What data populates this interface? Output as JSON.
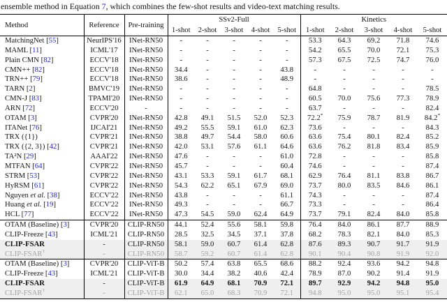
{
  "caption": {
    "before": "ensemble method in Equation ",
    "equation_ref": "7",
    "after": ", which combines the few-shot results and video-text matching results."
  },
  "colors": {
    "link_blue": "#2222cc",
    "muted_gray": "#a3a3a3",
    "shaded_row_bg": "#efefef"
  },
  "table": {
    "col_headers": {
      "method": "Method",
      "reference": "Reference",
      "pretraining": "Pre-training"
    },
    "dataset_groups": [
      {
        "label": "SSv2-Full"
      },
      {
        "label": "Kinetics"
      }
    ],
    "shot_headers": [
      "1-shot",
      "2-shot",
      "3-shot",
      "4-shot",
      "5-shot"
    ],
    "sections": [
      {
        "rows": [
          {
            "name": "MatchingNet",
            "cite": "55",
            "reference": "NeurIPS'16",
            "pretraining": "INet-RN50",
            "ssv2": [
              "-",
              "-",
              "-",
              "-",
              "-"
            ],
            "kinetics": [
              "53.3",
              "64.3",
              "69.2",
              "71.8",
              "74.6"
            ]
          },
          {
            "name": "MAML",
            "cite": "11",
            "reference": "ICML'17",
            "pretraining": "INet-RN50",
            "ssv2": [
              "-",
              "-",
              "-",
              "-",
              "-"
            ],
            "kinetics": [
              "54.2",
              "65.5",
              "70.0",
              "72.1",
              "75.3"
            ]
          },
          {
            "name": "Plain CMN",
            "cite": "82",
            "reference": "ECCV'18",
            "pretraining": "INet-RN50",
            "ssv2": [
              "-",
              "-",
              "-",
              "-",
              "-"
            ],
            "kinetics": [
              "57.3",
              "67.5",
              "72.5",
              "74.7",
              "76.0"
            ]
          },
          {
            "name": "CMN++",
            "cite": "82",
            "reference": "ECCV'18",
            "pretraining": "INet-RN50",
            "ssv2": [
              "34.4",
              "-",
              "-",
              "-",
              "43.8"
            ],
            "kinetics": [
              "-",
              "-",
              "-",
              "-",
              "-"
            ]
          },
          {
            "name": "TRN++",
            "cite": "79",
            "reference": "ECCV'18",
            "pretraining": "INet-RN50",
            "ssv2": [
              "38.6",
              "-",
              "-",
              "-",
              "48.9"
            ],
            "kinetics": [
              "-",
              "-",
              "-",
              "-",
              "-"
            ]
          },
          {
            "name": "TARN",
            "cite": "2",
            "reference": "BMVC'19",
            "pretraining": "INet-RN50",
            "ssv2": [
              "-",
              "-",
              "-",
              "-",
              "-"
            ],
            "kinetics": [
              "64.8",
              "-",
              "-",
              "-",
              "78.5"
            ]
          },
          {
            "name": "CMN-J",
            "cite": "83",
            "reference": "TPAMI'20",
            "pretraining": "INet-RN50",
            "ssv2": [
              "-",
              "-",
              "-",
              "-",
              "-"
            ],
            "kinetics": [
              "60.5",
              "70.0",
              "75.6",
              "77.3",
              "78.9"
            ]
          },
          {
            "name": "ARN",
            "cite": "72",
            "reference": "ECCV'20",
            "pretraining": "-",
            "ssv2": [
              "-",
              "-",
              "-",
              "-",
              "-"
            ],
            "kinetics": [
              "63.7",
              "-",
              "-",
              "-",
              "82.4"
            ]
          },
          {
            "name": "OTAM",
            "cite": "3",
            "reference": "CVPR'20",
            "pretraining": "INet-RN50",
            "ssv2": [
              "42.8",
              "49.1",
              "51.5",
              "52.0",
              "52.3"
            ],
            "kinetics": [
              "72.2*",
              "75.9",
              "78.7",
              "81.9",
              "84.2*"
            ]
          },
          {
            "name": "ITANet",
            "cite": "76",
            "reference": "IJCAI'21",
            "pretraining": "INet-RN50",
            "ssv2": [
              "49.2",
              "55.5",
              "59.1",
              "61.0",
              "62.3"
            ],
            "kinetics": [
              "73.6",
              "-",
              "-",
              "-",
              "84.3"
            ]
          },
          {
            "name": "TRX ({1})",
            "reference": "CVPR'21",
            "pretraining": "INet-RN50",
            "ssv2": [
              "38.8",
              "49.7",
              "54.4",
              "58.0",
              "60.6"
            ],
            "kinetics": [
              "63.6",
              "75.4",
              "80.1",
              "82.4",
              "85.2"
            ]
          },
          {
            "name": "TRX ({2, 3})",
            "cite": "42",
            "reference": "CVPR'21",
            "pretraining": "INet-RN50",
            "ssv2": [
              "42.0",
              "53.1",
              "57.6",
              "61.1",
              "64.6"
            ],
            "kinetics": [
              "63.6",
              "76.2",
              "81.8",
              "83.4",
              "85.9"
            ]
          },
          {
            "name": "TA²N",
            "cite": "29",
            "reference": "AAAI'22",
            "pretraining": "INet-RN50",
            "ssv2": [
              "47.6",
              "-",
              "-",
              "-",
              "61.0"
            ],
            "kinetics": [
              "72.8",
              "-",
              "-",
              "-",
              "85.8"
            ]
          },
          {
            "name": "MTFAN",
            "cite": "64",
            "reference": "CVPR'22",
            "pretraining": "INet-RN50",
            "ssv2": [
              "45.7",
              "-",
              "-",
              "-",
              "60.4"
            ],
            "kinetics": [
              "74.6",
              "-",
              "-",
              "-",
              "87.4"
            ]
          },
          {
            "name": "STRM",
            "cite": "53",
            "reference": "CVPR'22",
            "pretraining": "INet-RN50",
            "ssv2": [
              "43.1",
              "53.3",
              "59.1",
              "61.7",
              "68.1"
            ],
            "kinetics": [
              "62.9",
              "76.4",
              "81.1",
              "83.8",
              "86.7"
            ]
          },
          {
            "name": "HyRSM",
            "cite": "61",
            "reference": "CVPR'22",
            "pretraining": "INet-RN50",
            "ssv2": [
              "54.3",
              "62.2",
              "65.1",
              "67.9",
              "69.0"
            ],
            "kinetics": [
              "73.7",
              "80.0",
              "83.5",
              "84.6",
              "86.1"
            ]
          },
          {
            "name": "Nguyen",
            "etal": true,
            "cite": "38",
            "reference": "ECCV'22",
            "pretraining": "INet-RN50",
            "ssv2": [
              "43.8",
              "-",
              "-",
              "-",
              "61.1"
            ],
            "kinetics": [
              "74.3",
              "-",
              "-",
              "-",
              "87.4"
            ]
          },
          {
            "name": "Huang",
            "etal": true,
            "cite": "19",
            "reference": "ECCV'22",
            "pretraining": "INet-RN50",
            "ssv2": [
              "49.3",
              "-",
              "-",
              "-",
              "66.7"
            ],
            "kinetics": [
              "73.3",
              "-",
              "-",
              "-",
              "86.4"
            ]
          },
          {
            "name": "HCL",
            "cite": "77",
            "reference": "ECCV'22",
            "pretraining": "INet-RN50",
            "ssv2": [
              "47.3",
              "54.5",
              "59.0",
              "62.4",
              "64.9"
            ],
            "kinetics": [
              "73.7",
              "79.1",
              "82.4",
              "84.0",
              "85.8"
            ]
          }
        ]
      },
      {
        "rows": [
          {
            "name": "OTAM (Baseline)",
            "cite": "3",
            "reference": "CVPR'20",
            "pretraining": "CLIP-RN50",
            "ssv2": [
              "44.1",
              "52.4",
              "55.6",
              "58.1",
              "59.8"
            ],
            "kinetics": [
              "76.4",
              "84.0",
              "86.1",
              "87.7",
              "88.9"
            ]
          },
          {
            "name": "CLIP-Freeze",
            "cite": "43",
            "reference": "ICML'21",
            "pretraining": "CLIP-RN50",
            "ssv2": [
              "28.5",
              "32.5",
              "34.5",
              "37.1",
              "37.8"
            ],
            "kinetics": [
              "68.2",
              "78.3",
              "82.1",
              "84.0",
              "85.3"
            ]
          },
          {
            "name": "CLIP-FSAR",
            "bold": true,
            "shaded": true,
            "reference": "-",
            "pretraining": "CLIP-RN50",
            "ssv2": [
              "58.1",
              "59.0",
              "60.7",
              "61.4",
              "62.8"
            ],
            "kinetics": [
              "87.6",
              "89.3",
              "90.7",
              "91.7",
              "91.9"
            ]
          },
          {
            "name": "CLIP-FSAR",
            "dagger": true,
            "gray": true,
            "shaded": true,
            "reference": "-",
            "pretraining": "CLIP-RN50",
            "ssv2": [
              "58.7",
              "59.2",
              "60.7",
              "61.4",
              "62.8"
            ],
            "kinetics": [
              "90.1",
              "90.4",
              "90.8",
              "91.9",
              "92.0"
            ]
          }
        ]
      },
      {
        "rows": [
          {
            "name": "OTAM (Baseline)",
            "cite": "3",
            "reference": "CVPR'20",
            "pretraining": "CLIP-ViT-B",
            "ssv2": [
              "50.2",
              "57.4",
              "63.8",
              "65.5",
              "68.6"
            ],
            "kinetics": [
              "88.2",
              "92.4",
              "93.6",
              "94.2",
              "94.8"
            ]
          },
          {
            "name": "CLIP-Freeze",
            "cite": "43",
            "reference": "ICML'21",
            "pretraining": "CLIP-ViT-B",
            "ssv2": [
              "30.0",
              "34.4",
              "38.2",
              "40.6",
              "42.4"
            ],
            "kinetics": [
              "78.9",
              "87.0",
              "90.2",
              "91.4",
              "91.9"
            ]
          },
          {
            "name": "CLIP-FSAR",
            "bold": true,
            "bold_values": true,
            "shaded": true,
            "reference": "-",
            "pretraining": "CLIP-ViT-B",
            "ssv2": [
              "61.9",
              "64.9",
              "68.1",
              "70.9",
              "72.1"
            ],
            "kinetics": [
              "89.7",
              "92.9",
              "94.2",
              "94.8",
              "95.0"
            ]
          },
          {
            "name": "CLIP-FSAR",
            "dagger": true,
            "gray": true,
            "shaded": true,
            "reference": "-",
            "pretraining": "CLIP-ViT-B",
            "ssv2": [
              "62.1",
              "65.0",
              "68.3",
              "70.9",
              "72.1"
            ],
            "kinetics": [
              "94.8",
              "95.0",
              "95.0",
              "95.1",
              "95.4"
            ]
          }
        ]
      }
    ]
  }
}
